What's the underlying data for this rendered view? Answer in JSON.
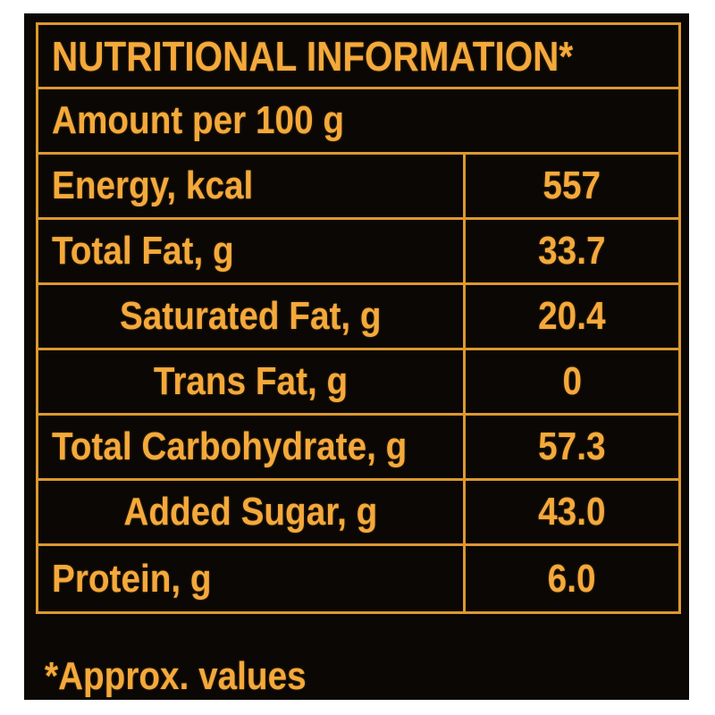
{
  "colors": {
    "page_background": "#ffffff",
    "panel_background": "#0A0705",
    "grid_border": "#DD9830",
    "text_accent": "#F4A93B"
  },
  "table": {
    "title": "NUTRITIONAL INFORMATION*",
    "subtitle": "Amount per 100 g",
    "rows": [
      {
        "label": "Energy, kcal",
        "value": "557",
        "indent": false
      },
      {
        "label": "Total Fat, g",
        "value": "33.7",
        "indent": false
      },
      {
        "label": "Saturated Fat, g",
        "value": "20.4",
        "indent": true
      },
      {
        "label": "Trans Fat, g",
        "value": "0",
        "indent": true
      },
      {
        "label": "Total Carbohydrate, g",
        "value": "57.3",
        "indent": false
      },
      {
        "label": "Added Sugar, g",
        "value": "43.0",
        "indent": true
      },
      {
        "label": "Protein, g",
        "value": "6.0",
        "indent": false
      }
    ],
    "footnote": "*Approx. values"
  }
}
